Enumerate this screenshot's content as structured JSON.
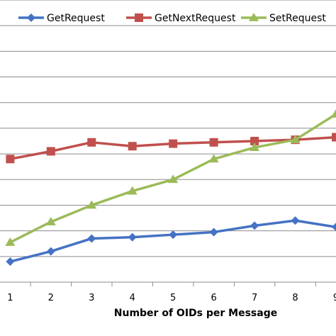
{
  "chart_data": {
    "type": "line",
    "xlabel": "Number of OIDs per Message",
    "ylabel": "",
    "title": "",
    "categories": [
      "1",
      "2",
      "3",
      "4",
      "5",
      "6",
      "7",
      "8",
      "9"
    ],
    "xlim": [
      0.75,
      9.0
    ],
    "ylim": [
      0,
      11
    ],
    "grid": true,
    "legend": "top",
    "series": [
      {
        "name": "GetRequest",
        "color": "#4472C4",
        "marker": "diamond",
        "values": [
          0.8,
          1.2,
          1.7,
          1.75,
          1.85,
          1.95,
          2.2,
          2.4,
          2.15
        ]
      },
      {
        "name": "GetNextRequest",
        "color": "#C0504D",
        "marker": "square",
        "values": [
          4.8,
          5.1,
          5.45,
          5.3,
          5.4,
          5.45,
          5.5,
          5.55,
          5.65
        ]
      },
      {
        "name": "SetRequest",
        "color": "#9BBB59",
        "marker": "triangle",
        "values": [
          1.55,
          2.35,
          3.0,
          3.55,
          4.0,
          4.8,
          5.25,
          5.55,
          6.55
        ]
      }
    ]
  }
}
